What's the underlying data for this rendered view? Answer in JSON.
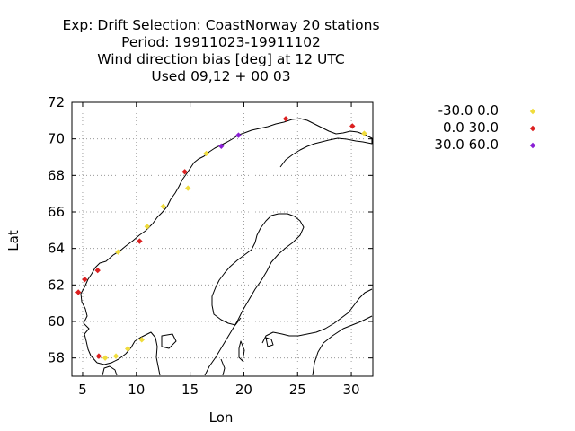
{
  "title": {
    "line1": "Exp: Drift   Selection: CoastNorway     20 stations",
    "line2": "Period: 19911023-19911102",
    "line3": "Wind direction bias [deg] at  12 UTC",
    "line4": "Used  09,12 + 00 03"
  },
  "chart_data": {
    "type": "scatter",
    "xlabel": "Lon",
    "ylabel": "Lat",
    "xlim": [
      4,
      32
    ],
    "ylim": [
      57,
      72
    ],
    "xticks": [
      5,
      10,
      15,
      20,
      25,
      30
    ],
    "yticks": [
      58,
      60,
      62,
      64,
      66,
      68,
      70,
      72
    ],
    "grid": true,
    "legend_position": "right",
    "series": [
      {
        "name": "-30.0 0.0",
        "color": "#f0dc3c",
        "points": [
          [
            31.2,
            70.3
          ],
          [
            16.5,
            69.2
          ],
          [
            14.8,
            67.3
          ],
          [
            12.5,
            66.3
          ],
          [
            11.0,
            65.2
          ],
          [
            8.3,
            63.8
          ],
          [
            7.1,
            58.0
          ],
          [
            8.1,
            58.1
          ],
          [
            9.2,
            58.5
          ],
          [
            10.5,
            59.0
          ]
        ]
      },
      {
        "name": "0.0 30.0",
        "color": "#dc2020",
        "points": [
          [
            23.9,
            71.1
          ],
          [
            30.1,
            70.7
          ],
          [
            14.5,
            68.2
          ],
          [
            10.3,
            64.4
          ],
          [
            6.4,
            62.8
          ],
          [
            5.2,
            62.3
          ],
          [
            4.6,
            61.6
          ],
          [
            6.5,
            58.1
          ]
        ]
      },
      {
        "name": "30.0 60.0",
        "color": "#8a1fd4",
        "points": [
          [
            19.5,
            70.2
          ],
          [
            17.9,
            69.6
          ]
        ]
      }
    ]
  }
}
